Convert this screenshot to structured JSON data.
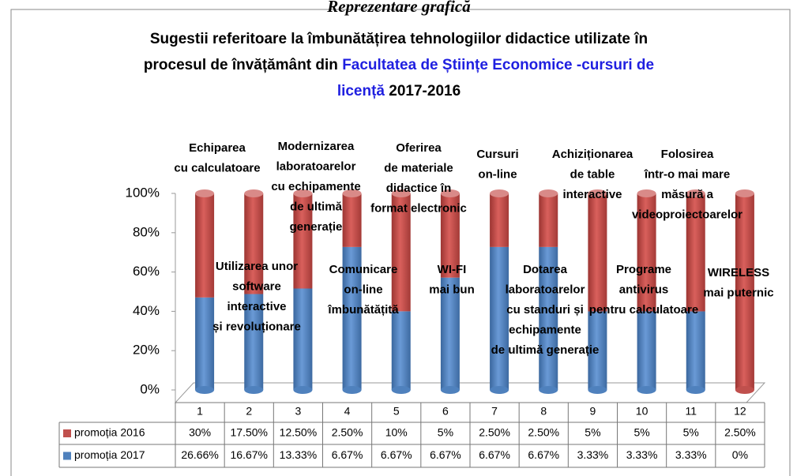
{
  "header": "Reprezentare grafică",
  "chart_data": {
    "type": "stacked_percent_cylinder",
    "title": [
      [
        {
          "text": "Sugestii referitoare la îmbunătățirea tehnologiilor didactice utilizate în",
          "color": "#000000"
        }
      ],
      [
        {
          "text": "procesul de învățământ din ",
          "color": "#000000"
        },
        {
          "text": "Facultatea de Științe Economice -cursuri de",
          "color": "#1f1fe0"
        }
      ],
      [
        {
          "text": "licență",
          "color": "#1f1fe0"
        },
        {
          "text": " 2017-2016",
          "color": "#000000"
        }
      ]
    ],
    "categories": [
      "1",
      "2",
      "3",
      "4",
      "5",
      "6",
      "7",
      "8",
      "9",
      "10",
      "11",
      "12"
    ],
    "series": [
      {
        "name": "promoția 2016",
        "color": "#c0504d",
        "values": [
          30,
          17.5,
          12.5,
          2.5,
          10,
          5,
          2.5,
          2.5,
          5,
          5,
          5,
          2.5
        ],
        "value_labels": [
          "30%",
          "17.50%",
          "12.50%",
          "2.50%",
          "10%",
          "5%",
          "2.50%",
          "2.50%",
          "5%",
          "5%",
          "5%",
          "2.50%"
        ]
      },
      {
        "name": "promoția 2017",
        "color": "#4f81bd",
        "values": [
          26.66,
          16.67,
          13.33,
          6.67,
          6.67,
          6.67,
          6.67,
          6.67,
          3.33,
          3.33,
          3.33,
          0
        ],
        "value_labels": [
          "26.66%",
          "16.67%",
          "13.33%",
          "6.67%",
          "6.67%",
          "6.67%",
          "6.67%",
          "6.67%",
          "3.33%",
          "3.33%",
          "3.33%",
          "0%"
        ]
      }
    ],
    "ylim": [
      0,
      100
    ],
    "yticks": [
      {
        "value": 0,
        "label": "0%"
      },
      {
        "value": 20,
        "label": "20%"
      },
      {
        "value": 40,
        "label": "40%"
      },
      {
        "value": 60,
        "label": "60%"
      },
      {
        "value": 80,
        "label": "80%"
      },
      {
        "value": 100,
        "label": "100%"
      }
    ],
    "annotations": [
      [
        "Echiparea",
        "cu calculatoare"
      ],
      [
        "Modernizarea",
        "laboratoarelor",
        "cu echipamente",
        "de ultimă",
        "generație"
      ],
      [
        "Oferirea",
        "de materiale",
        "didactice în",
        "format electronic"
      ],
      [
        "Cursuri",
        "on-line"
      ],
      [
        "Achiziționarea",
        "de table",
        "interactive"
      ],
      [
        "Folosirea",
        "într-o mai mare",
        "măsură a",
        "videoproiectoarelor"
      ],
      [
        "Utilizarea unor",
        "software",
        "interactive",
        "și revoluționare"
      ],
      [
        "Comunicare",
        "on-line",
        "îmbunătățită"
      ],
      [
        "WI-FI",
        "mai bun"
      ],
      [
        "Dotarea",
        "laboratoarelor",
        "cu standuri și",
        "echipamente",
        "de ultimă generație"
      ],
      [
        "Programe",
        "antivirus",
        "pentru calculatoare"
      ],
      [
        "WIRELESS",
        "mai puternic"
      ]
    ]
  }
}
